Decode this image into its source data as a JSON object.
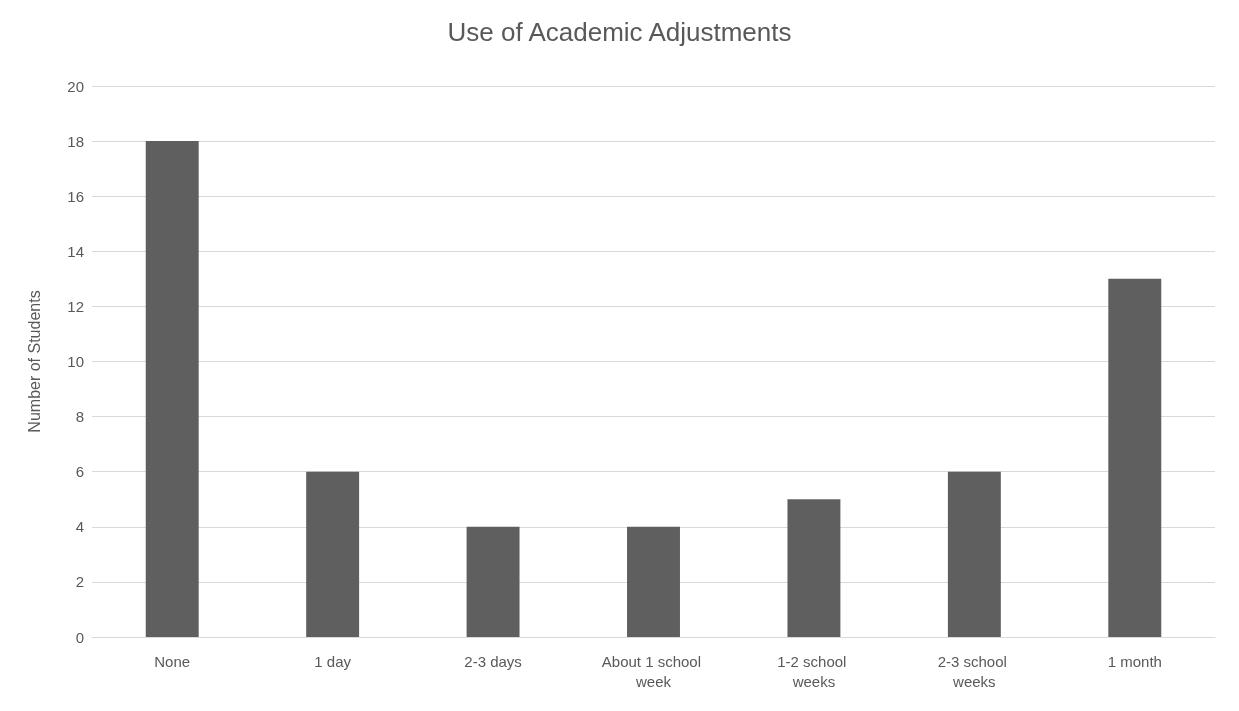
{
  "chart_data": {
    "type": "bar",
    "title": "Use of Academic Adjustments",
    "ylabel": "Number of Students",
    "categories": [
      "None",
      "1 day",
      "2-3 days",
      "About 1 school week",
      "1-2 school weeks",
      "2-3 school weeks",
      "1 month"
    ],
    "values": [
      18,
      6,
      4,
      4,
      5,
      6,
      13
    ],
    "color": "#5f5f5f",
    "ylim": [
      0,
      20
    ],
    "yticks": [
      0,
      2,
      4,
      6,
      8,
      10,
      12,
      14,
      16,
      18,
      20
    ],
    "grid": "y"
  }
}
